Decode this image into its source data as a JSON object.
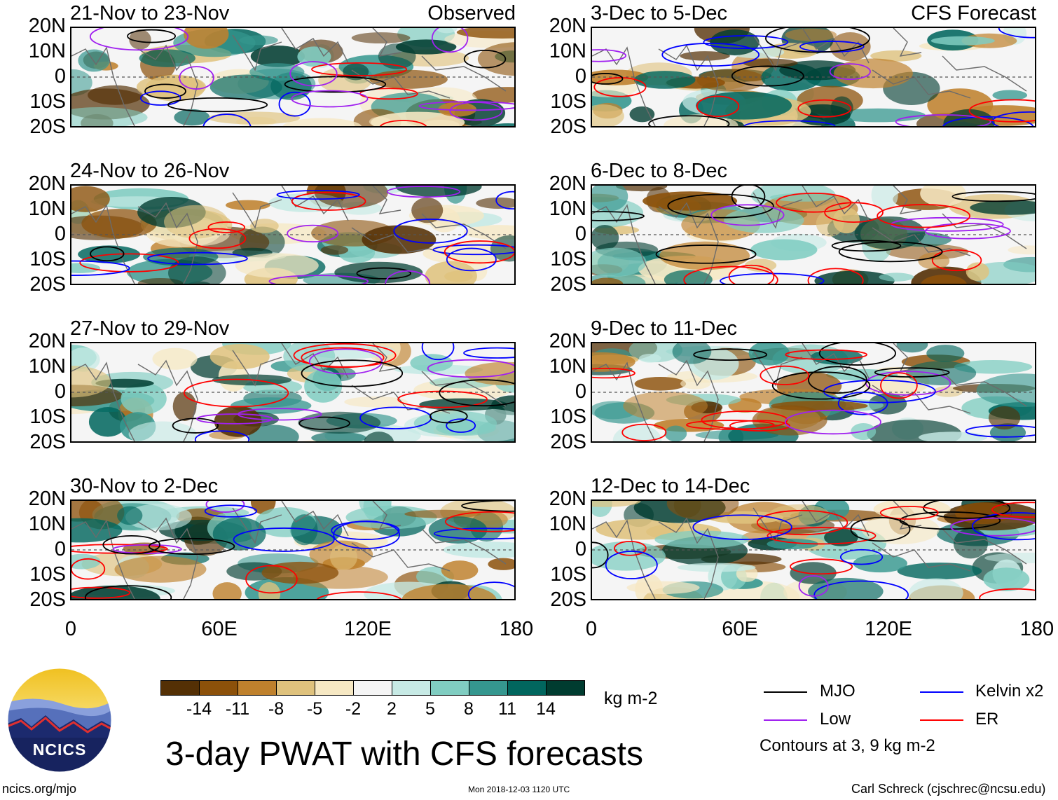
{
  "panels_left": [
    {
      "title": "21-Nov to 23-Nov",
      "tag": "Observed"
    },
    {
      "title": "24-Nov to 26-Nov",
      "tag": ""
    },
    {
      "title": "27-Nov to 29-Nov",
      "tag": ""
    },
    {
      "title": "30-Nov to 2-Dec",
      "tag": ""
    }
  ],
  "panels_right": [
    {
      "title": "3-Dec to 5-Dec",
      "tag": "CFS Forecast"
    },
    {
      "title": "6-Dec to 8-Dec",
      "tag": ""
    },
    {
      "title": "9-Dec to 11-Dec",
      "tag": ""
    },
    {
      "title": "12-Dec to 14-Dec",
      "tag": ""
    }
  ],
  "lat_labels": [
    "20N",
    "10N",
    "0",
    "10S",
    "20S"
  ],
  "lon_labels": [
    "0",
    "60E",
    "120E",
    "180"
  ],
  "colorbar": {
    "labels": [
      "-14",
      "-11",
      "-8",
      "-5",
      "-2",
      "2",
      "5",
      "8",
      "11",
      "14"
    ],
    "colors": [
      "#543005",
      "#8c510a",
      "#bf812d",
      "#dfc27d",
      "#f6e8c3",
      "#f5f5f5",
      "#c7eae5",
      "#80cdc1",
      "#35978f",
      "#01665e",
      "#003c30"
    ],
    "units": "kg m-2"
  },
  "legend": {
    "items": [
      {
        "label": "MJO",
        "color": "#000000"
      },
      {
        "label": "Kelvin x2",
        "color": "#0000ff"
      },
      {
        "label": "Low",
        "color": "#a020f0"
      },
      {
        "label": "ER",
        "color": "#ff0000"
      }
    ],
    "note": "Contours at 3, 9 kg m-2"
  },
  "main_title": "3-day PWAT with CFS forecasts",
  "logo_text": "NCICS",
  "footer": {
    "left": "ncics.org/mjo",
    "center": "Mon 2018-12-03 1120 UTC",
    "right": "Carl Schreck (cjschrec@ncsu.edu)"
  }
}
